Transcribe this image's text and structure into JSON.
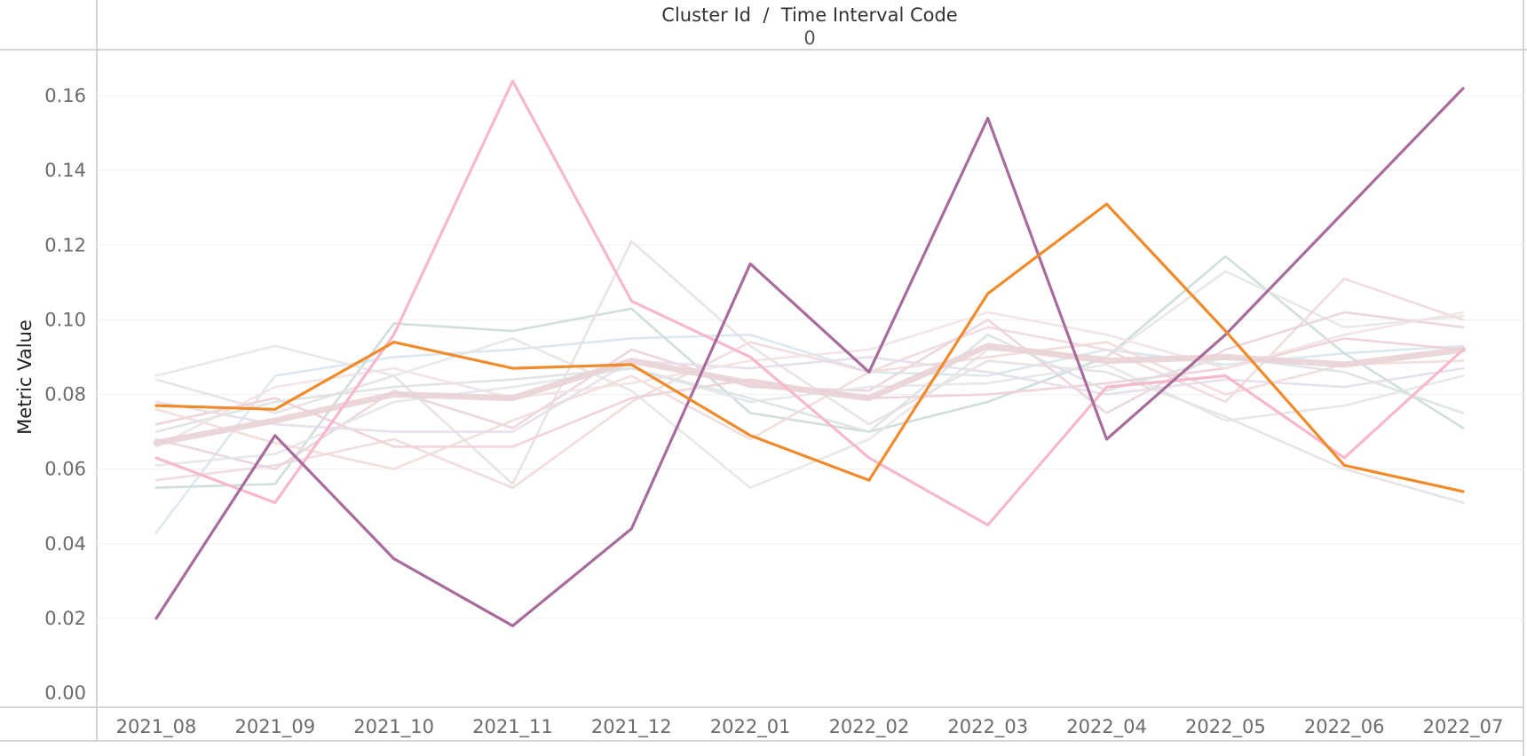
{
  "header": {
    "title": "Cluster Id  /  Time Interval Code",
    "subtitle": "0"
  },
  "chart_data": {
    "type": "line",
    "ylabel": "Metric Value",
    "xlabel": "",
    "ylim": [
      0,
      0.17
    ],
    "y_ticks": [
      "0.00",
      "0.02",
      "0.04",
      "0.06",
      "0.08",
      "0.10",
      "0.12",
      "0.14",
      "0.16"
    ],
    "y_tick_values": [
      0,
      0.02,
      0.04,
      0.06,
      0.08,
      0.1,
      0.12,
      0.14,
      0.16
    ],
    "categories": [
      "2021_08",
      "2021_09",
      "2021_10",
      "2021_11",
      "2021_12",
      "2022_01",
      "2022_02",
      "2022_03",
      "2022_04",
      "2022_05",
      "2022_06",
      "2022_07"
    ],
    "grid": true,
    "legend": "none",
    "series": [
      {
        "color": "#d8e6ee",
        "highlight": false,
        "values": [
          0.043,
          0.085,
          0.09,
          0.092,
          0.095,
          0.096,
          0.086,
          0.085,
          0.092,
          0.088,
          0.091,
          0.093
        ]
      },
      {
        "color": "#c9dcd9",
        "highlight": false,
        "values": [
          0.055,
          0.056,
          0.099,
          0.097,
          0.103,
          0.075,
          0.07,
          0.078,
          0.09,
          0.117,
          0.091,
          0.071
        ]
      },
      {
        "color": "#e5e5e5",
        "highlight": false,
        "values": [
          0.085,
          0.093,
          0.085,
          0.095,
          0.081,
          0.055,
          0.068,
          0.092,
          0.09,
          0.113,
          0.098,
          0.101
        ]
      },
      {
        "color": "#efd8da",
        "highlight": false,
        "values": [
          0.057,
          0.061,
          0.068,
          0.055,
          0.078,
          0.094,
          0.086,
          0.098,
          0.092,
          0.078,
          0.111,
          0.1
        ]
      },
      {
        "color": "#e8e0e0",
        "highlight": false,
        "values": [
          0.084,
          0.075,
          0.085,
          0.056,
          0.121,
          0.093,
          0.072,
          0.089,
          0.086,
          0.074,
          0.06,
          0.051
        ]
      },
      {
        "color": "#ead3dd",
        "highlight": false,
        "values": [
          0.068,
          0.06,
          0.081,
          0.071,
          0.092,
          0.082,
          0.081,
          0.1,
          0.075,
          0.092,
          0.102,
          0.098
        ]
      },
      {
        "color": "#e2e6ea",
        "highlight": false,
        "values": [
          0.061,
          0.064,
          0.078,
          0.082,
          0.087,
          0.078,
          0.082,
          0.083,
          0.088,
          0.073,
          0.077,
          0.085
        ]
      },
      {
        "color": "#eecfd5",
        "highlight": false,
        "values": [
          0.072,
          0.079,
          0.066,
          0.066,
          0.079,
          0.084,
          0.079,
          0.08,
          0.083,
          0.087,
          0.095,
          0.092
        ]
      },
      {
        "color": "#f1dcd9",
        "highlight": false,
        "values": [
          0.076,
          0.067,
          0.06,
          0.073,
          0.085,
          0.068,
          0.086,
          0.09,
          0.094,
          0.08,
          0.088,
          0.089
        ]
      },
      {
        "color": "#e6dde9",
        "highlight": false,
        "values": [
          0.078,
          0.072,
          0.07,
          0.07,
          0.089,
          0.087,
          0.09,
          0.086,
          0.08,
          0.084,
          0.082,
          0.087
        ]
      },
      {
        "color": "#dbe2e2",
        "highlight": false,
        "values": [
          0.07,
          0.078,
          0.082,
          0.084,
          0.087,
          0.079,
          0.07,
          0.096,
          0.081,
          0.09,
          0.086,
          0.075
        ]
      },
      {
        "color": "#f3e2e2",
        "highlight": false,
        "values": [
          0.066,
          0.082,
          0.087,
          0.079,
          0.083,
          0.089,
          0.092,
          0.102,
          0.096,
          0.087,
          0.096,
          0.102
        ]
      },
      {
        "color": "#e9d3d6",
        "highlight": false,
        "values": [
          0.067,
          0.073,
          0.08,
          0.079,
          0.089,
          0.083,
          0.079,
          0.093,
          0.089,
          0.09,
          0.088,
          0.092
        ],
        "width": 7
      },
      {
        "color": "#f6b8cb",
        "highlight": true,
        "values": [
          0.063,
          0.051,
          0.096,
          0.164,
          0.105,
          0.09,
          0.063,
          0.045,
          0.082,
          0.085,
          0.063,
          0.092
        ]
      },
      {
        "color": "#a76c9c",
        "highlight": true,
        "values": [
          0.02,
          0.069,
          0.036,
          0.018,
          0.044,
          0.115,
          0.086,
          0.154,
          0.068,
          0.096,
          0.129,
          0.162
        ]
      },
      {
        "color": "#ef8b2b",
        "highlight": true,
        "values": [
          0.077,
          0.076,
          0.094,
          0.087,
          0.088,
          0.069,
          0.057,
          0.107,
          0.131,
          0.097,
          0.061,
          0.054
        ]
      }
    ]
  }
}
